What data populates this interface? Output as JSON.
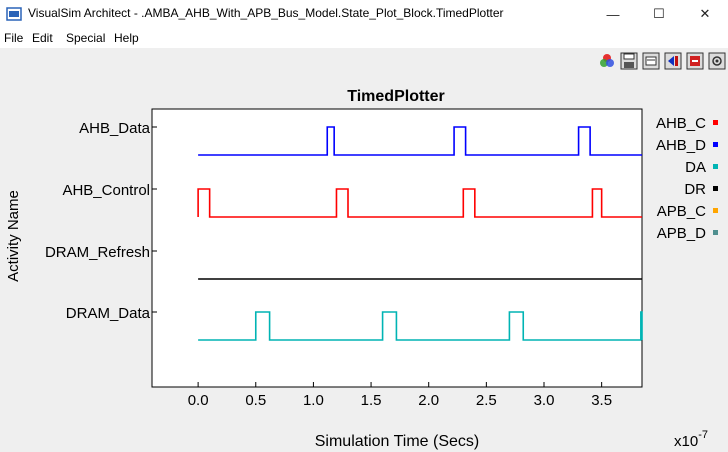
{
  "window": {
    "title": "VisualSim Architect - .AMBA_AHB_With_APB_Bus_Model.State_Plot_Block.TimedPlotter",
    "minimize_glyph": "—",
    "maximize_glyph": "☐",
    "close_glyph": "✕"
  },
  "menu": [
    "File",
    "Edit",
    "Special",
    "Help"
  ],
  "toolbar": {
    "icons": [
      "color-palette-icon",
      "save-icon",
      "print-icon",
      "zoom-fit-icon",
      "zoom-in-icon",
      "settings-icon"
    ]
  },
  "chart_data": {
    "type": "line",
    "title": "TimedPlotter",
    "xlabel": "Simulation Time (Secs)",
    "ylabel": "Activity Name",
    "x_scale_note": "x10",
    "x_scale_exp": "-7",
    "xlim": [
      -0.4,
      3.85
    ],
    "x_ticks": [
      "0.0",
      "0.5",
      "1.0",
      "1.5",
      "2.0",
      "2.5",
      "3.0",
      "3.5"
    ],
    "x_tick_values": [
      0.0,
      0.5,
      1.0,
      1.5,
      2.0,
      2.5,
      3.0,
      3.5
    ],
    "y_categories": [
      "AHB_Data",
      "AHB_Control",
      "DRAM_Refresh",
      "DRAM_Data"
    ],
    "legend_placement": "right",
    "legend": [
      {
        "label": "AHB_C",
        "color": "#ff0000"
      },
      {
        "label": "AHB_D",
        "color": "#0000ff"
      },
      {
        "label": "DA",
        "color": "#00b4b4"
      },
      {
        "label": "DR",
        "color": "#000000"
      },
      {
        "label": "APB_C",
        "color": "#ffa500"
      },
      {
        "label": "APB_D",
        "color": "#4f8f8f"
      }
    ],
    "series": [
      {
        "row": "AHB_Data",
        "color": "#0000ff",
        "x_start": 0.0,
        "x_end": 3.85,
        "pulses": [
          [
            1.12,
            1.18
          ],
          [
            2.22,
            2.32
          ],
          [
            3.3,
            3.4
          ]
        ]
      },
      {
        "row": "AHB_Control",
        "color": "#ff0000",
        "x_start": 0.0,
        "x_end": 3.85,
        "pulses": [
          [
            0.0,
            0.1
          ],
          [
            1.2,
            1.3
          ],
          [
            2.3,
            2.4
          ],
          [
            3.42,
            3.5
          ]
        ]
      },
      {
        "row": "DRAM_Refresh",
        "color": "#000000",
        "x_start": 0.0,
        "x_end": 3.85,
        "pulses": []
      },
      {
        "row": "DRAM_Data",
        "color": "#00b4b4",
        "x_start": 0.0,
        "x_end": 3.85,
        "pulses": [
          [
            0.5,
            0.62
          ],
          [
            1.6,
            1.72
          ],
          [
            2.7,
            2.82
          ],
          [
            3.84,
            3.85
          ]
        ]
      }
    ]
  }
}
